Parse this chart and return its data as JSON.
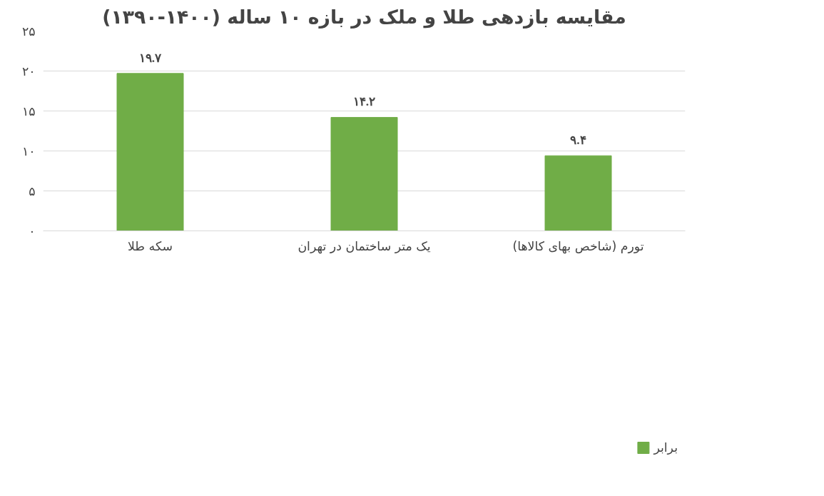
{
  "chart_data": {
    "type": "bar",
    "title": "مقایسه بازدهی طلا و ملک در بازه ۱۰ ساله (۱۴۰۰-۱۳۹۰)",
    "categories": [
      "سکه طلا",
      "یک متر ساختمان در تهران",
      "تورم (شاخص بهای کالاها)"
    ],
    "series": [
      {
        "name": "برابر",
        "color": "#70ad47",
        "values": [
          19.7,
          14.2,
          9.4
        ],
        "value_labels": [
          "۱۹.۷",
          "۱۴.۲",
          "۹.۴"
        ]
      }
    ],
    "ylim": [
      0,
      25
    ],
    "yticks": [
      {
        "value": 0,
        "label": "۰"
      },
      {
        "value": 5,
        "label": "۵"
      },
      {
        "value": 10,
        "label": "۱۰"
      },
      {
        "value": 15,
        "label": "۱۵"
      },
      {
        "value": 20,
        "label": "۲۰"
      },
      {
        "value": 25,
        "label": "۲۵"
      }
    ],
    "grid": "y",
    "legend": "bottom"
  }
}
